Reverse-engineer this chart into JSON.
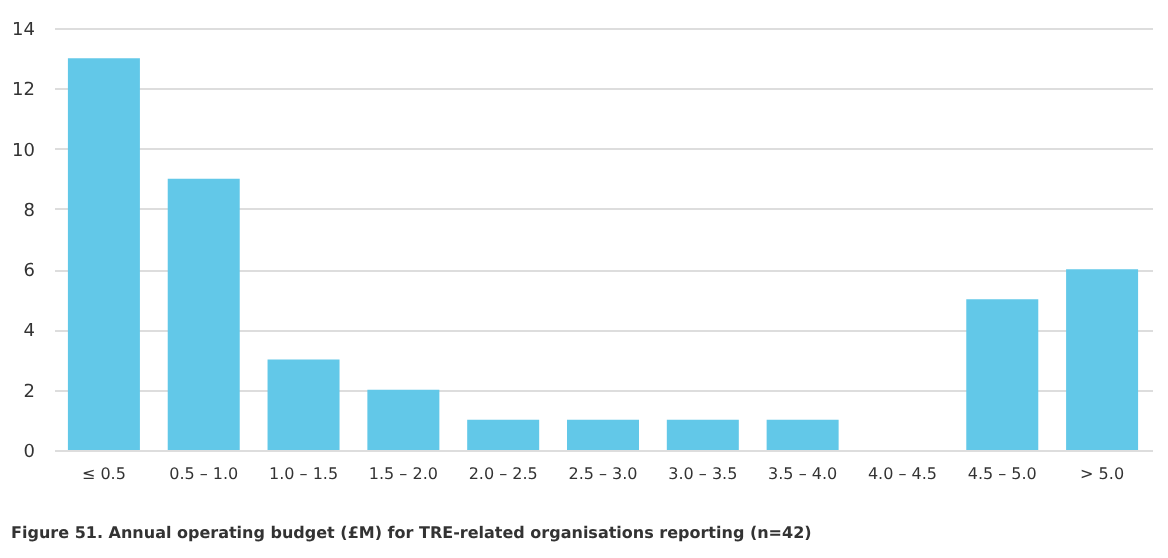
{
  "chart_data": {
    "type": "bar",
    "categories": [
      "≤ 0.5",
      "0.5 – 1.0",
      "1.0 – 1.5",
      "1.5 – 2.0",
      "2.0 – 2.5",
      "2.5 – 3.0",
      "3.0 – 3.5",
      "3.5 – 4.0",
      "4.0 – 4.5",
      "4.5 – 5.0",
      "> 5.0"
    ],
    "values": [
      13,
      9,
      3,
      2,
      1,
      1,
      1,
      1,
      0,
      5,
      6
    ],
    "color": "#62c8e8",
    "ylim": [
      0,
      14
    ],
    "yticks": [
      0,
      2,
      4,
      6,
      8,
      10,
      12,
      14
    ],
    "grid": "y",
    "annotations": [
      "Figure 51. Annual operating budget (£M) for TRE-related organisations reporting (n=42)"
    ]
  }
}
